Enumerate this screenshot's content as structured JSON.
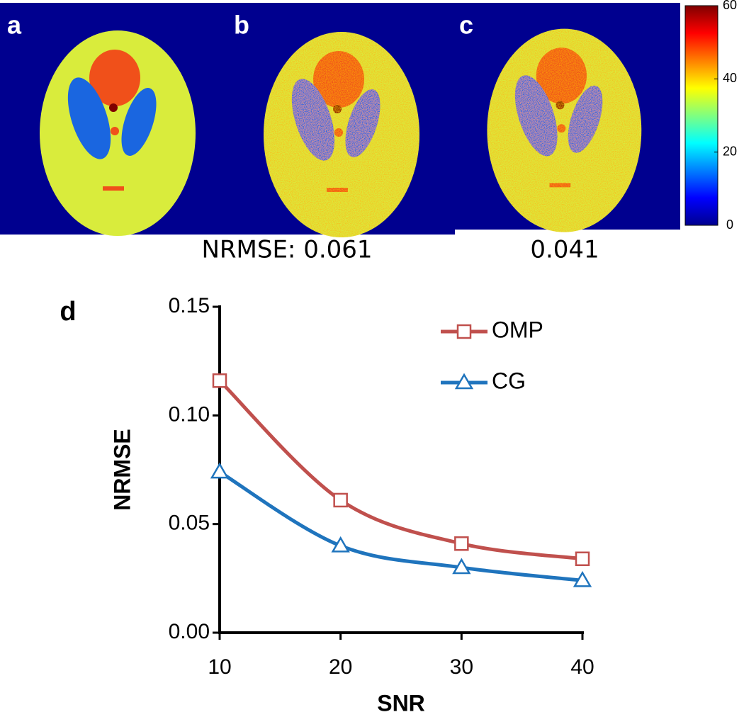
{
  "panels": [
    {
      "label": "a"
    },
    {
      "label": "b"
    },
    {
      "label": "c"
    }
  ],
  "colorbar": {
    "lim": [
      0,
      60
    ],
    "ticks": [
      0,
      20,
      40,
      60
    ]
  },
  "annotations": [
    "NRMSE: 0.061",
    "0.041"
  ],
  "chart_data": {
    "type": "line",
    "panel_label": "d",
    "x_label": "SNR",
    "y_label": "NRMSE",
    "x": [
      10,
      20,
      30,
      40
    ],
    "xlim": [
      10,
      40
    ],
    "xticks": [
      10,
      20,
      30,
      40
    ],
    "ylim": [
      0,
      0.15
    ],
    "yticks": [
      {
        "value": 0,
        "label": "0.00"
      },
      {
        "value": 0.05,
        "label": "0.05"
      },
      {
        "value": 0.1,
        "label": "0.10"
      },
      {
        "value": 0.15,
        "label": "0.15"
      }
    ],
    "legend": "top-right",
    "series": [
      {
        "name": "OMP",
        "color": "#c0504d",
        "marker": "square",
        "values": [
          0.116,
          0.061,
          0.041,
          0.034
        ]
      },
      {
        "name": "CG",
        "color": "#1f74bd",
        "marker": "triangle",
        "values": [
          0.074,
          0.04,
          0.03,
          0.024
        ]
      }
    ]
  }
}
